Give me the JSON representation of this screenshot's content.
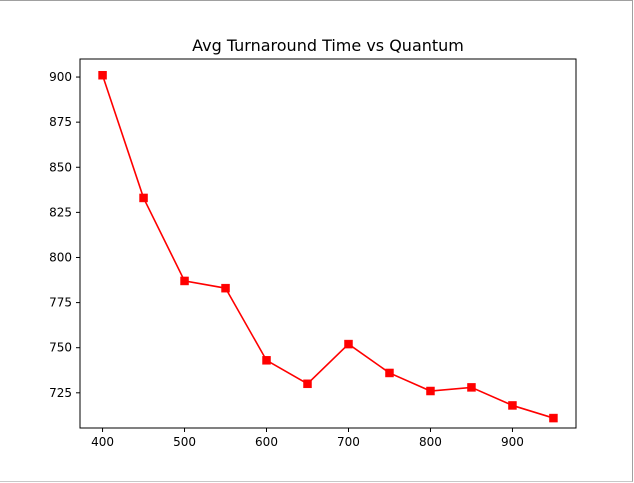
{
  "chart_data": {
    "type": "line",
    "title": "Avg Turnaround Time vs Quantum",
    "xlabel": "",
    "ylabel": "",
    "x": [
      400,
      450,
      500,
      550,
      600,
      650,
      700,
      750,
      800,
      850,
      900,
      950
    ],
    "series": [
      {
        "values": [
          901,
          833,
          787,
          783,
          743,
          730,
          752,
          736,
          726,
          728,
          718,
          711
        ],
        "color": "#ff0000",
        "marker": "square"
      }
    ],
    "xlim": [
      372.5,
      977.5
    ],
    "ylim": [
      705.5,
      910
    ],
    "xticks": [
      400,
      500,
      600,
      700,
      800,
      900
    ],
    "yticks": [
      725,
      750,
      775,
      800,
      825,
      850,
      875,
      900
    ],
    "grid": false,
    "legend": "none"
  }
}
